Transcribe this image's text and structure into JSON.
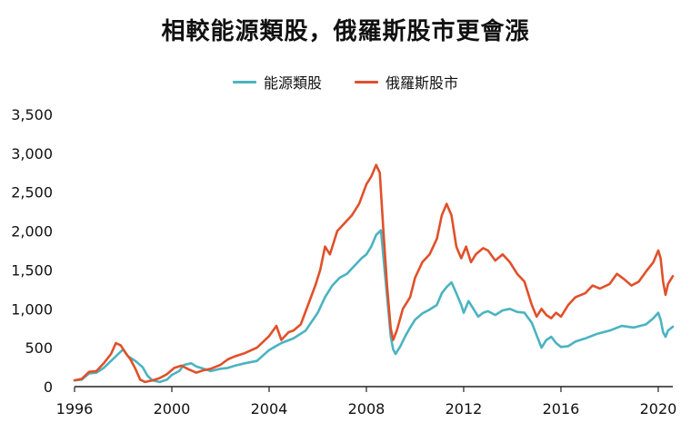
{
  "chart_data": {
    "type": "line",
    "title": "相較能源類股，俄羅斯股市更會漲",
    "xlabel": "",
    "ylabel": "",
    "xlim": [
      1996,
      2020.6
    ],
    "ylim": [
      0,
      3500
    ],
    "xticks": [
      1996,
      2000,
      2004,
      2008,
      2012,
      2016,
      2020
    ],
    "xtick_labels": [
      "1996",
      "2000",
      "2004",
      "2008",
      "2012",
      "2016",
      "2020"
    ],
    "yticks": [
      0,
      500,
      1000,
      1500,
      2000,
      2500,
      3000,
      3500
    ],
    "ytick_labels": [
      "0",
      "500",
      "1,000",
      "1,500",
      "2,000",
      "2,500",
      "3,000",
      "3,500"
    ],
    "grid": false,
    "legend_position": "top-center",
    "series": [
      {
        "name": "能源類股",
        "color": "#4BB3C1",
        "points": [
          [
            1996.0,
            80
          ],
          [
            1996.3,
            90
          ],
          [
            1996.6,
            170
          ],
          [
            1996.9,
            180
          ],
          [
            1997.2,
            240
          ],
          [
            1997.5,
            330
          ],
          [
            1997.8,
            420
          ],
          [
            1998.0,
            480
          ],
          [
            1998.2,
            390
          ],
          [
            1998.5,
            330
          ],
          [
            1998.8,
            250
          ],
          [
            1999.0,
            140
          ],
          [
            1999.2,
            80
          ],
          [
            1999.5,
            60
          ],
          [
            1999.8,
            90
          ],
          [
            2000.0,
            150
          ],
          [
            2000.3,
            200
          ],
          [
            2000.5,
            280
          ],
          [
            2000.8,
            300
          ],
          [
            2001.0,
            260
          ],
          [
            2001.3,
            230
          ],
          [
            2001.6,
            200
          ],
          [
            2002.0,
            230
          ],
          [
            2002.3,
            240
          ],
          [
            2002.6,
            270
          ],
          [
            2003.0,
            300
          ],
          [
            2003.5,
            330
          ],
          [
            2004.0,
            470
          ],
          [
            2004.5,
            560
          ],
          [
            2005.0,
            620
          ],
          [
            2005.5,
            720
          ],
          [
            2006.0,
            950
          ],
          [
            2006.3,
            1150
          ],
          [
            2006.6,
            1300
          ],
          [
            2006.9,
            1400
          ],
          [
            2007.2,
            1450
          ],
          [
            2007.5,
            1550
          ],
          [
            2007.8,
            1650
          ],
          [
            2008.0,
            1700
          ],
          [
            2008.2,
            1800
          ],
          [
            2008.4,
            1950
          ],
          [
            2008.6,
            2010
          ],
          [
            2008.75,
            1500
          ],
          [
            2008.9,
            1000
          ],
          [
            2009.0,
            650
          ],
          [
            2009.1,
            480
          ],
          [
            2009.2,
            420
          ],
          [
            2009.4,
            520
          ],
          [
            2009.6,
            650
          ],
          [
            2009.8,
            760
          ],
          [
            2010.0,
            860
          ],
          [
            2010.3,
            940
          ],
          [
            2010.6,
            990
          ],
          [
            2010.9,
            1050
          ],
          [
            2011.1,
            1200
          ],
          [
            2011.3,
            1280
          ],
          [
            2011.5,
            1340
          ],
          [
            2011.7,
            1200
          ],
          [
            2011.9,
            1050
          ],
          [
            2012.0,
            950
          ],
          [
            2012.2,
            1100
          ],
          [
            2012.4,
            1000
          ],
          [
            2012.6,
            900
          ],
          [
            2012.8,
            950
          ],
          [
            2013.0,
            970
          ],
          [
            2013.3,
            920
          ],
          [
            2013.6,
            980
          ],
          [
            2013.9,
            1000
          ],
          [
            2014.2,
            960
          ],
          [
            2014.5,
            950
          ],
          [
            2014.8,
            820
          ],
          [
            2015.0,
            660
          ],
          [
            2015.2,
            500
          ],
          [
            2015.4,
            600
          ],
          [
            2015.6,
            640
          ],
          [
            2015.8,
            560
          ],
          [
            2016.0,
            510
          ],
          [
            2016.3,
            520
          ],
          [
            2016.6,
            580
          ],
          [
            2017.0,
            620
          ],
          [
            2017.5,
            680
          ],
          [
            2018.0,
            720
          ],
          [
            2018.5,
            780
          ],
          [
            2019.0,
            760
          ],
          [
            2019.5,
            800
          ],
          [
            2019.8,
            880
          ],
          [
            2020.0,
            950
          ],
          [
            2020.1,
            860
          ],
          [
            2020.2,
            700
          ],
          [
            2020.3,
            640
          ],
          [
            2020.4,
            720
          ],
          [
            2020.6,
            770
          ]
        ]
      },
      {
        "name": "俄羅斯股市",
        "color": "#E1502A",
        "points": [
          [
            1996.0,
            80
          ],
          [
            1996.3,
            100
          ],
          [
            1996.6,
            190
          ],
          [
            1996.9,
            200
          ],
          [
            1997.2,
            300
          ],
          [
            1997.5,
            420
          ],
          [
            1997.7,
            560
          ],
          [
            1997.9,
            530
          ],
          [
            1998.1,
            430
          ],
          [
            1998.3,
            350
          ],
          [
            1998.5,
            230
          ],
          [
            1998.7,
            90
          ],
          [
            1998.9,
            60
          ],
          [
            1999.2,
            80
          ],
          [
            1999.5,
            110
          ],
          [
            1999.8,
            160
          ],
          [
            2000.1,
            240
          ],
          [
            2000.4,
            270
          ],
          [
            2000.7,
            220
          ],
          [
            2001.0,
            180
          ],
          [
            2001.3,
            210
          ],
          [
            2001.6,
            230
          ],
          [
            2002.0,
            280
          ],
          [
            2002.3,
            350
          ],
          [
            2002.6,
            390
          ],
          [
            2003.0,
            430
          ],
          [
            2003.5,
            500
          ],
          [
            2004.0,
            650
          ],
          [
            2004.3,
            780
          ],
          [
            2004.5,
            600
          ],
          [
            2004.8,
            700
          ],
          [
            2005.0,
            720
          ],
          [
            2005.3,
            800
          ],
          [
            2005.6,
            1050
          ],
          [
            2005.9,
            1300
          ],
          [
            2006.1,
            1500
          ],
          [
            2006.3,
            1800
          ],
          [
            2006.5,
            1700
          ],
          [
            2006.8,
            2000
          ],
          [
            2007.1,
            2100
          ],
          [
            2007.4,
            2200
          ],
          [
            2007.7,
            2350
          ],
          [
            2008.0,
            2600
          ],
          [
            2008.2,
            2700
          ],
          [
            2008.4,
            2850
          ],
          [
            2008.55,
            2750
          ],
          [
            2008.7,
            2000
          ],
          [
            2008.85,
            1300
          ],
          [
            2009.0,
            750
          ],
          [
            2009.1,
            600
          ],
          [
            2009.25,
            720
          ],
          [
            2009.5,
            1000
          ],
          [
            2009.8,
            1150
          ],
          [
            2010.0,
            1400
          ],
          [
            2010.3,
            1600
          ],
          [
            2010.6,
            1700
          ],
          [
            2010.9,
            1900
          ],
          [
            2011.1,
            2200
          ],
          [
            2011.3,
            2350
          ],
          [
            2011.5,
            2200
          ],
          [
            2011.7,
            1800
          ],
          [
            2011.9,
            1650
          ],
          [
            2012.1,
            1800
          ],
          [
            2012.3,
            1600
          ],
          [
            2012.5,
            1700
          ],
          [
            2012.8,
            1780
          ],
          [
            2013.0,
            1750
          ],
          [
            2013.3,
            1620
          ],
          [
            2013.6,
            1700
          ],
          [
            2013.9,
            1600
          ],
          [
            2014.2,
            1450
          ],
          [
            2014.5,
            1350
          ],
          [
            2014.8,
            1050
          ],
          [
            2015.0,
            900
          ],
          [
            2015.2,
            1000
          ],
          [
            2015.4,
            920
          ],
          [
            2015.6,
            880
          ],
          [
            2015.8,
            950
          ],
          [
            2016.0,
            900
          ],
          [
            2016.3,
            1050
          ],
          [
            2016.6,
            1150
          ],
          [
            2017.0,
            1200
          ],
          [
            2017.3,
            1300
          ],
          [
            2017.6,
            1260
          ],
          [
            2018.0,
            1320
          ],
          [
            2018.3,
            1450
          ],
          [
            2018.6,
            1380
          ],
          [
            2018.9,
            1300
          ],
          [
            2019.2,
            1350
          ],
          [
            2019.5,
            1480
          ],
          [
            2019.8,
            1600
          ],
          [
            2020.0,
            1750
          ],
          [
            2020.1,
            1650
          ],
          [
            2020.2,
            1350
          ],
          [
            2020.3,
            1180
          ],
          [
            2020.4,
            1320
          ],
          [
            2020.6,
            1420
          ]
        ]
      }
    ]
  }
}
